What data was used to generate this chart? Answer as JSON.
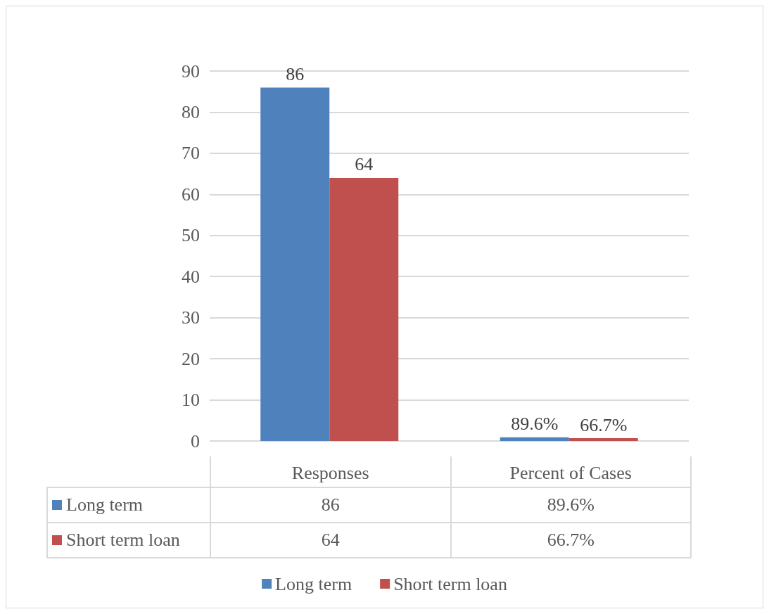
{
  "chart_data": {
    "type": "bar",
    "categories": [
      "Responses",
      "Percent of Cases"
    ],
    "series": [
      {
        "name": "Long term",
        "color": "#4f81bd",
        "values": [
          86,
          0.896
        ],
        "value_labels": [
          "86",
          "89.6%"
        ]
      },
      {
        "name": "Short term loan",
        "color": "#c0504d",
        "values": [
          64,
          0.667
        ],
        "value_labels": [
          "64",
          "66.7%"
        ]
      }
    ],
    "ylim": [
      0,
      90
    ],
    "yticks": [
      0,
      10,
      20,
      30,
      40,
      50,
      60,
      70,
      80,
      90
    ],
    "grid": "y",
    "legend": "bottom"
  }
}
